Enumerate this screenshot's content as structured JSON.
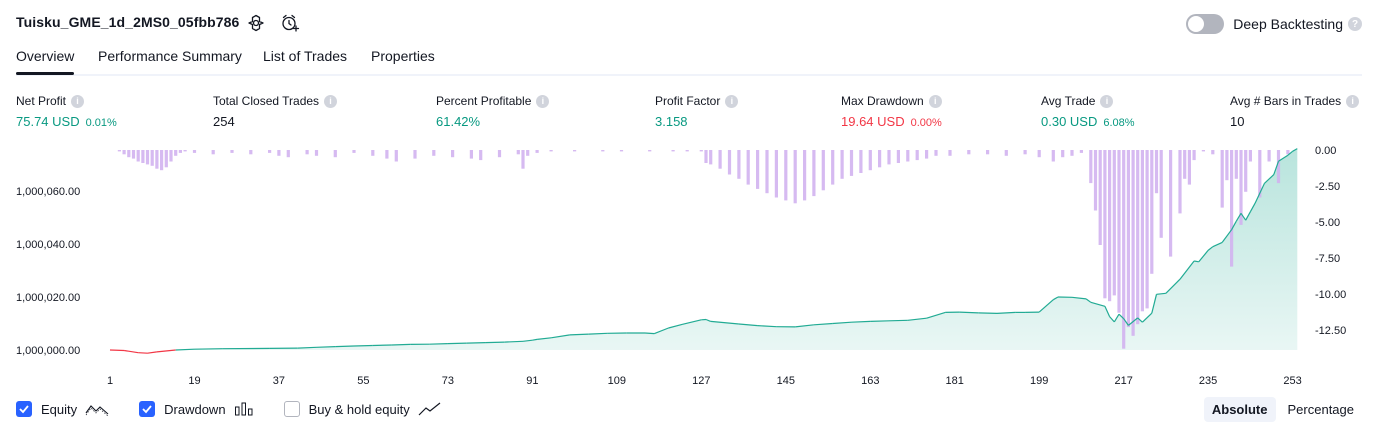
{
  "header": {
    "title": "Tuisku_GME_1d_2MS0_05fbb786",
    "deep_backtesting_label": "Deep Backtesting",
    "deep_backtesting_on": false
  },
  "tabs": [
    {
      "label": "Overview",
      "active": true
    },
    {
      "label": "Performance Summary",
      "active": false
    },
    {
      "label": "List of Trades",
      "active": false
    },
    {
      "label": "Properties",
      "active": false
    }
  ],
  "metrics": {
    "net_profit": {
      "label": "Net Profit",
      "value": "75.74 USD",
      "sub": "0.01%"
    },
    "total_closed_trades": {
      "label": "Total Closed Trades",
      "value": "254"
    },
    "percent_profitable": {
      "label": "Percent Profitable",
      "value": "61.42%"
    },
    "profit_factor": {
      "label": "Profit Factor",
      "value": "3.158"
    },
    "max_drawdown": {
      "label": "Max Drawdown",
      "value": "19.64 USD",
      "sub": "0.00%"
    },
    "avg_trade": {
      "label": "Avg Trade",
      "value": "0.30 USD",
      "sub": "6.08%"
    },
    "avg_bars": {
      "label": "Avg # Bars in Trades",
      "value": "10"
    }
  },
  "chart_data": {
    "type": "area",
    "x_ticks": [
      "1",
      "19",
      "37",
      "55",
      "73",
      "91",
      "109",
      "127",
      "145",
      "163",
      "181",
      "199",
      "217",
      "235",
      "253"
    ],
    "y_left_ticks": [
      "1,000,000.00",
      "1,000,020.00",
      "1,000,040.00",
      "1,000,060.00"
    ],
    "y_right_ticks": [
      "0.00",
      "-2.50",
      "-5.00",
      "-7.50",
      "-10.00",
      "-12.50"
    ],
    "xlim": [
      1,
      255
    ],
    "ylim_equity": [
      999998,
      1000075
    ],
    "ylim_drawdown": [
      -14,
      0
    ],
    "series": [
      {
        "name": "Equity",
        "color": "#22ab94",
        "negative_color": "#f23645",
        "x": [
          1,
          4,
          7,
          9,
          11,
          15,
          19,
          25,
          35,
          41,
          45,
          49,
          53,
          57,
          61,
          65,
          69,
          73,
          77,
          81,
          85,
          89,
          91,
          92,
          95,
          99,
          103,
          107,
          111,
          115,
          117,
          120,
          123,
          127,
          128,
          129,
          135,
          139,
          143,
          147,
          151,
          155,
          159,
          163,
          167,
          171,
          175,
          179,
          182,
          186,
          190,
          194,
          196,
          199,
          202,
          203,
          206,
          209,
          210,
          213,
          214,
          215,
          216,
          217,
          218,
          220,
          221,
          223,
          224,
          226,
          229,
          232,
          233,
          235,
          236,
          238,
          240,
          241,
          242,
          243,
          244,
          245,
          247,
          249,
          250,
          252,
          253,
          254
        ],
        "values": [
          1000000.0,
          999999.8,
          999999.0,
          999998.8,
          999999.3,
          1000000.0,
          1000000.3,
          1000000.5,
          1000000.6,
          1000000.7,
          1000001.0,
          1000001.3,
          1000001.5,
          1000001.7,
          1000001.9,
          1000002.1,
          1000002.2,
          1000002.4,
          1000002.6,
          1000002.8,
          1000003.0,
          1000003.3,
          1000003.7,
          1000004.0,
          1000004.6,
          1000005.7,
          1000006.0,
          1000006.3,
          1000006.4,
          1000006.4,
          1000006.2,
          1000008.3,
          1000009.7,
          1000011.4,
          1000011.5,
          1000010.8,
          1000009.8,
          1000009.2,
          1000008.8,
          1000008.7,
          1000009.5,
          1000010.0,
          1000010.5,
          1000010.8,
          1000011.0,
          1000011.2,
          1000012.0,
          1000014.2,
          1000014.3,
          1000014.0,
          1000013.8,
          1000014.2,
          1000014.2,
          1000014.3,
          1000019.0,
          1000020.0,
          1000019.9,
          1000019.3,
          1000018.0,
          1000016.5,
          1000012.6,
          1000010.6,
          1000013.5,
          1000011.8,
          1000009.3,
          1000012.1,
          1000010.5,
          1000013.9,
          1000021.0,
          1000021.4,
          1000026.7,
          1000033.6,
          1000033.3,
          1000037.6,
          1000039.0,
          1000040.6,
          1000045.4,
          1000048.6,
          1000051.6,
          1000049.0,
          1000052.2,
          1000055.4,
          1000062.9,
          1000066.2,
          1000071.2,
          1000073.5,
          1000075.0,
          1000076.0
        ]
      },
      {
        "name": "Drawdown",
        "color": "#d1b3f0",
        "x": [
          3,
          4,
          5,
          6,
          7,
          8,
          9,
          10,
          11,
          12,
          13,
          14,
          15,
          16,
          17,
          19,
          23,
          27,
          31,
          35,
          37,
          39,
          43,
          45,
          49,
          53,
          57,
          60,
          62,
          66,
          70,
          74,
          78,
          80,
          84,
          88,
          89,
          90,
          92,
          95,
          100,
          106,
          110,
          116,
          121,
          124,
          127,
          128,
          129,
          131,
          133,
          135,
          137,
          139,
          141,
          143,
          145,
          147,
          149,
          151,
          153,
          155,
          157,
          159,
          161,
          163,
          165,
          167,
          169,
          171,
          173,
          175,
          177,
          180,
          184,
          188,
          192,
          196,
          199,
          202,
          204,
          206,
          208,
          210,
          211,
          212,
          213,
          214,
          215,
          216,
          217,
          218,
          219,
          220,
          221,
          222,
          223,
          224,
          225,
          227,
          229,
          230,
          231,
          232,
          234,
          236,
          238,
          239,
          240,
          241,
          242,
          243,
          244,
          246,
          248,
          250,
          252
        ],
        "values": [
          -0.1,
          -0.3,
          -0.5,
          -0.6,
          -0.8,
          -0.9,
          -1.0,
          -1.1,
          -1.3,
          -1.4,
          -1.2,
          -0.8,
          -0.4,
          -0.2,
          -0.1,
          -0.2,
          -0.3,
          -0.2,
          -0.3,
          -0.2,
          -0.4,
          -0.5,
          -0.3,
          -0.4,
          -0.5,
          -0.2,
          -0.4,
          -0.6,
          -0.8,
          -0.6,
          -0.4,
          -0.5,
          -0.6,
          -0.7,
          -0.5,
          -0.3,
          -1.3,
          -0.4,
          -0.2,
          -0.1,
          -0.1,
          -0.1,
          -0.1,
          -0.1,
          -0.1,
          -0.1,
          -0.1,
          -0.9,
          -1.0,
          -1.3,
          -1.7,
          -2.0,
          -2.4,
          -2.7,
          -3.0,
          -3.3,
          -3.5,
          -3.7,
          -3.5,
          -3.2,
          -2.8,
          -2.4,
          -2.0,
          -1.8,
          -1.6,
          -1.4,
          -1.2,
          -1.0,
          -0.9,
          -0.8,
          -0.7,
          -0.6,
          -0.4,
          -0.4,
          -0.3,
          -0.3,
          -0.4,
          -0.3,
          -0.5,
          -0.8,
          -0.5,
          -0.4,
          -0.2,
          -2.3,
          -4.2,
          -6.6,
          -10.3,
          -10.5,
          -10.1,
          -11.3,
          -13.8,
          -12.3,
          -12.9,
          -12.1,
          -11.2,
          -11.0,
          -8.6,
          -3.0,
          -6.1,
          -7.4,
          -4.4,
          -2.0,
          -2.4,
          -0.7,
          -0.1,
          -0.3,
          -4.0,
          -2.1,
          -8.1,
          -2.0,
          -5.2,
          -2.9,
          -0.8,
          -3.3,
          -0.8,
          -2.3,
          -0.3
        ]
      }
    ]
  },
  "legend": {
    "equity": {
      "label": "Equity",
      "checked": true
    },
    "drawdown": {
      "label": "Drawdown",
      "checked": true
    },
    "buy_hold": {
      "label": "Buy & hold equity",
      "checked": false
    }
  },
  "modes": {
    "absolute": "Absolute",
    "percentage": "Percentage",
    "active": "absolute"
  }
}
